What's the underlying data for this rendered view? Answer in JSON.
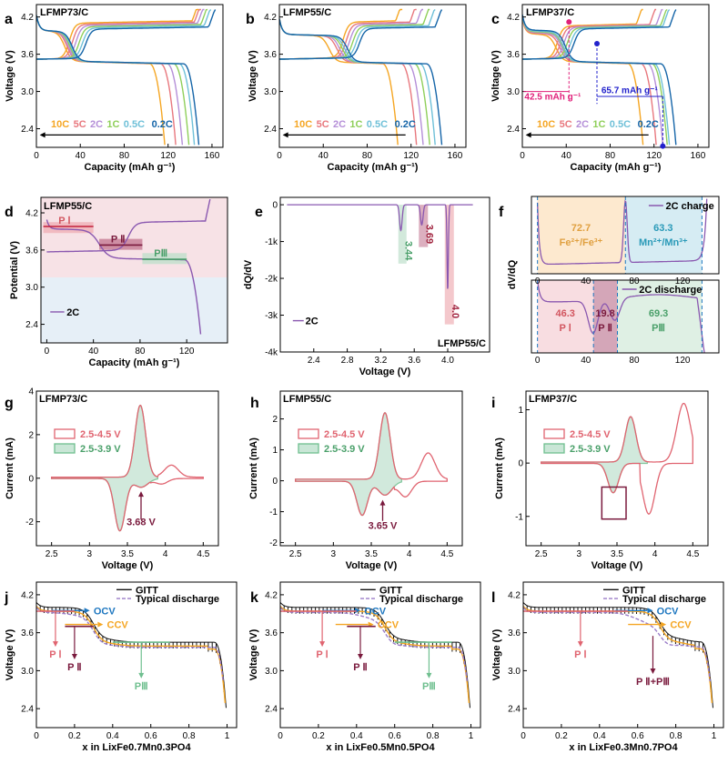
{
  "chart_data": [
    {
      "panel": "a",
      "title": "LFMP73/C",
      "type": "line",
      "xlabel": "Capacity (mAh g⁻¹)",
      "ylabel": "Voltage (V)",
      "xlim": [
        0,
        170
      ],
      "ylim": [
        2.1,
        4.4
      ],
      "xticks": [
        0,
        40,
        80,
        120,
        160
      ],
      "yticks": [
        2.4,
        3.0,
        3.6,
        4.2
      ],
      "legend": [
        "10C",
        "5C",
        "2C",
        "1C",
        "0.5C",
        "0.2C"
      ],
      "colors": [
        "#f5a623",
        "#e8787e",
        "#b58fd8",
        "#8fcf5a",
        "#6fc0d8",
        "#1565a8"
      ],
      "discharge_capacity_ends": [
        117,
        127,
        133,
        139,
        144,
        148
      ],
      "charge_capacity_ends": [
        148,
        150,
        153,
        156,
        159,
        163
      ]
    },
    {
      "panel": "b",
      "title": "LFMP55/C",
      "type": "line",
      "xlabel": "Capacity (mAh g⁻¹)",
      "ylabel": "Voltage (V)",
      "xlim": [
        0,
        170
      ],
      "ylim": [
        2.1,
        4.4
      ],
      "xticks": [
        0,
        40,
        80,
        120,
        160
      ],
      "yticks": [
        2.4,
        3.0,
        3.6,
        4.2
      ],
      "legend": [
        "10C",
        "5C",
        "2C",
        "1C",
        "0.5C",
        "0.2C"
      ],
      "colors": [
        "#f5a623",
        "#e8787e",
        "#b58fd8",
        "#8fcf5a",
        "#6fc0d8",
        "#1565a8"
      ],
      "discharge_capacity_ends": [
        108,
        125,
        131,
        137,
        142,
        148
      ],
      "charge_capacity_ends": [
        112,
        125,
        131,
        137,
        142,
        148
      ]
    },
    {
      "panel": "c",
      "title": "LFMP37/C",
      "type": "line",
      "xlabel": "Capacity (mAh g⁻¹)",
      "ylabel": "Voltage (V)",
      "xlim": [
        0,
        170
      ],
      "ylim": [
        2.1,
        4.4
      ],
      "xticks": [
        0,
        40,
        80,
        120,
        160
      ],
      "yticks": [
        2.4,
        3.0,
        3.6,
        4.2
      ],
      "legend": [
        "10C",
        "5C",
        "2C",
        "1C",
        "0.5C",
        "0.2C"
      ],
      "colors": [
        "#f5a623",
        "#e8787e",
        "#b58fd8",
        "#8fcf5a",
        "#6fc0d8",
        "#1565a8"
      ],
      "discharge_capacity_ends": [
        110,
        122,
        128,
        132,
        134,
        140
      ],
      "annotations": [
        "42.5 mAh g⁻¹",
        "65.7 mAh g⁻¹"
      ]
    },
    {
      "panel": "d",
      "title": "LFMP55/C",
      "type": "line",
      "xlabel": "Capacity (mAh g⁻¹)",
      "ylabel": "Potential (V)",
      "xlim": [
        -5,
        155
      ],
      "ylim": [
        2.1,
        4.45
      ],
      "xticks": [
        0,
        40,
        80,
        120
      ],
      "yticks": [
        2.4,
        3.0,
        3.6,
        4.2
      ],
      "legend": [
        "2C"
      ],
      "regions": [
        "P Ⅰ",
        "P Ⅱ",
        "PⅢ"
      ]
    },
    {
      "panel": "e",
      "title": "LFMP55/C",
      "type": "line",
      "xlabel": "Voltage (V)",
      "ylabel": "dQ/dV",
      "xlim": [
        2.0,
        4.5
      ],
      "ylim": [
        -4000,
        200
      ],
      "xticks": [
        2.4,
        2.8,
        3.2,
        3.6,
        4.0
      ],
      "xtick_labels": [
        "2.4",
        "2.8",
        "3.2",
        "3.6",
        "4.0"
      ],
      "yticks": [
        0,
        -1000,
        -2000,
        -3000,
        -4000
      ],
      "ytick_labels": [
        "0",
        "-1k",
        "-2k",
        "-3k",
        "-4k"
      ],
      "legend": [
        "2C"
      ],
      "peaks": [
        {
          "x": 3.44,
          "y": -700,
          "label": "3.44"
        },
        {
          "x": 3.69,
          "y": -550,
          "label": "3.69"
        },
        {
          "x": 4.0,
          "y": -2350,
          "label": "4.0"
        }
      ]
    },
    {
      "panel": "f",
      "type": "line",
      "ylabel": "dV/dQ",
      "xlim": [
        -5,
        150
      ],
      "xticks": [
        0,
        40,
        80,
        120
      ],
      "top": {
        "legend": "2C charge",
        "regions": [
          {
            "value": "72.7",
            "label": "Fe²⁺/Fe³⁺"
          },
          {
            "value": "63.3",
            "label": "Mn²⁺/Mn³⁺"
          }
        ]
      },
      "bottom": {
        "legend": "2C discharge",
        "regions": [
          {
            "value": "46.3",
            "label": "P Ⅰ"
          },
          {
            "value": "19.8",
            "label": "P Ⅱ"
          },
          {
            "value": "69.3",
            "label": "PⅢ"
          }
        ]
      }
    },
    {
      "panel": "g",
      "title": "LFMP73/C",
      "type": "line",
      "xlabel": "Voltage (V)",
      "ylabel": "Current (mA)",
      "xlim": [
        2.3,
        4.7
      ],
      "ylim": [
        -3.1,
        4.0
      ],
      "xticks": [
        2.5,
        3.0,
        3.5,
        4.0,
        4.5
      ],
      "yticks": [
        -2,
        0,
        2,
        4
      ],
      "legend": [
        "2.5-4.5 V",
        "2.5-3.9 V"
      ],
      "annotation": "3.68 V"
    },
    {
      "panel": "h",
      "title": "LFMP55/C",
      "type": "line",
      "xlabel": "Voltage (V)",
      "ylabel": "Current (mA)",
      "xlim": [
        2.3,
        4.7
      ],
      "ylim": [
        -2.1,
        2.9
      ],
      "xticks": [
        2.5,
        3.0,
        3.5,
        4.0,
        4.5
      ],
      "yticks": [
        -2,
        -1,
        0,
        1,
        2
      ],
      "legend": [
        "2.5-4.5 V",
        "2.5-3.9 V"
      ],
      "annotation": "3.65 V"
    },
    {
      "panel": "i",
      "title": "LFMP37/C",
      "type": "line",
      "xlabel": "Voltage (V)",
      "ylabel": "Current (mA)",
      "xlim": [
        2.3,
        4.7
      ],
      "ylim": [
        -1.55,
        1.35
      ],
      "xticks": [
        2.5,
        3.0,
        3.5,
        4.0,
        4.5
      ],
      "yticks": [
        -1,
        0,
        1
      ],
      "legend": [
        "2.5-4.5 V",
        "2.5-3.9 V"
      ]
    },
    {
      "panel": "j",
      "type": "line",
      "xlabel": "x in LixFe0.7Mn0.3PO4",
      "ylabel": "Voltage (V)",
      "xlim": [
        0,
        1.05
      ],
      "ylim": [
        2.1,
        4.4
      ],
      "xticks": [
        0.0,
        0.2,
        0.4,
        0.6,
        0.8,
        1.0
      ],
      "yticks": [
        2.4,
        3.0,
        3.6,
        4.2
      ],
      "legend": [
        "GITT",
        "Typical discharge"
      ],
      "labels": [
        "OCV",
        "CCV",
        "P Ⅰ",
        "P Ⅱ",
        "PⅢ"
      ]
    },
    {
      "panel": "k",
      "type": "line",
      "xlabel": "x in LixFe0.5Mn0.5PO4",
      "ylabel": "Voltage (V)",
      "xlim": [
        0,
        1.05
      ],
      "ylim": [
        2.1,
        4.4
      ],
      "xticks": [
        0.0,
        0.2,
        0.4,
        0.6,
        0.8,
        1.0
      ],
      "yticks": [
        2.4,
        3.0,
        3.6,
        4.2
      ],
      "legend": [
        "GITT",
        "Typical discharge"
      ],
      "labels": [
        "OCV",
        "CCV",
        "P Ⅰ",
        "P Ⅱ",
        "PⅢ"
      ]
    },
    {
      "panel": "l",
      "type": "line",
      "xlabel": "x in LixFe0.3Mn0.7PO4",
      "ylabel": "Voltage (V)",
      "xlim": [
        0,
        1.05
      ],
      "ylim": [
        2.1,
        4.4
      ],
      "xticks": [
        0.0,
        0.2,
        0.4,
        0.6,
        0.8,
        1.0
      ],
      "yticks": [
        2.4,
        3.0,
        3.6,
        4.2
      ],
      "legend": [
        "GITT",
        "Typical discharge"
      ],
      "labels": [
        "OCV",
        "CCV",
        "P Ⅰ",
        "P Ⅱ+PⅢ"
      ]
    }
  ],
  "panel_letters": [
    "a",
    "b",
    "c",
    "d",
    "e",
    "f",
    "g",
    "h",
    "i",
    "j",
    "k",
    "l"
  ]
}
